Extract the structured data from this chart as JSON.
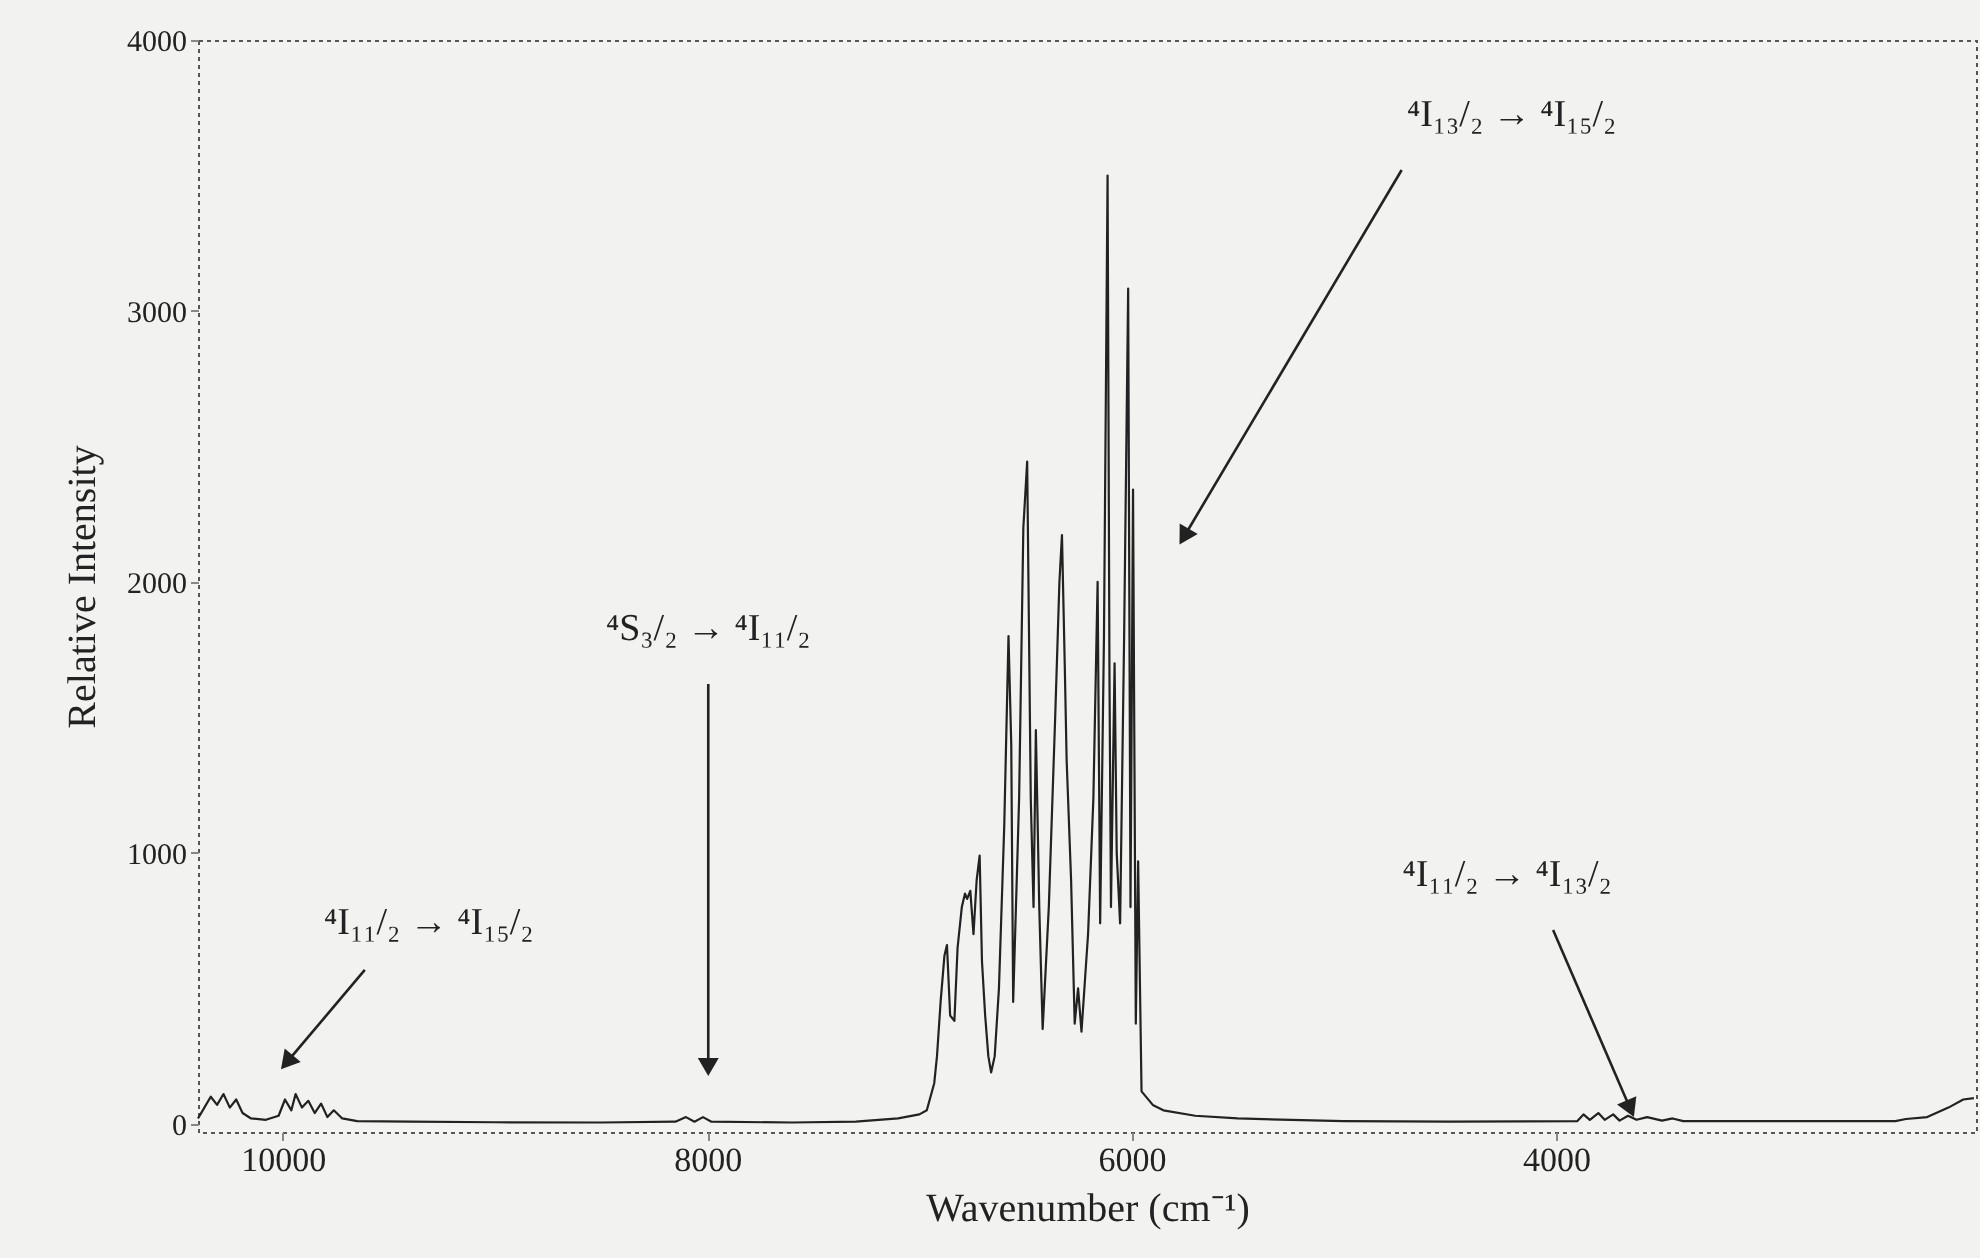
{
  "chart_data": {
    "type": "line",
    "xlabel": "Wavenumber (cm⁻¹)",
    "ylabel": "Relative Intensity",
    "xlim": [
      10400,
      2020
    ],
    "ylim": [
      -30,
      4000
    ],
    "xticks": [
      10000,
      8000,
      6000,
      4000
    ],
    "yticks": [
      0,
      1000,
      2000,
      3000,
      4000
    ],
    "grid": false,
    "x": [
      10400,
      10370,
      10340,
      10310,
      10280,
      10250,
      10220,
      10190,
      10150,
      10080,
      10020,
      9990,
      9960,
      9940,
      9910,
      9880,
      9850,
      9820,
      9790,
      9760,
      9720,
      9650,
      9400,
      9000,
      8500,
      8150,
      8100,
      8060,
      8020,
      7980,
      7600,
      7300,
      7100,
      7000,
      6965,
      6930,
      6917,
      6900,
      6882,
      6870,
      6855,
      6835,
      6820,
      6800,
      6785,
      6775,
      6760,
      6745,
      6730,
      6716,
      6705,
      6690,
      6675,
      6662,
      6645,
      6625,
      6600,
      6580,
      6567,
      6558,
      6530,
      6510,
      6492,
      6475,
      6462,
      6451,
      6435,
      6419,
      6390,
      6360,
      6340,
      6328,
      6315,
      6306,
      6285,
      6268,
      6252,
      6236,
      6205,
      6180,
      6160,
      6148,
      6130,
      6113,
      6104,
      6097,
      6080,
      6070,
      6054,
      6035,
      6016,
      6005,
      5993,
      5980,
      5969,
      5953,
      5900,
      5850,
      5700,
      5500,
      5000,
      4500,
      3900,
      3870,
      3840,
      3800,
      3770,
      3730,
      3700,
      3660,
      3620,
      3570,
      3500,
      3450,
      3400,
      3000,
      2400,
      2350,
      2250,
      2150,
      2080,
      2030
    ],
    "series": [
      {
        "color": "#222222",
        "values": [
          20,
          60,
          100,
          70,
          110,
          60,
          90,
          40,
          20,
          15,
          30,
          90,
          50,
          110,
          60,
          85,
          40,
          75,
          25,
          50,
          20,
          10,
          8,
          6,
          5,
          8,
          25,
          8,
          25,
          8,
          5,
          8,
          20,
          35,
          50,
          150,
          250,
          450,
          620,
          660,
          400,
          380,
          650,
          800,
          850,
          830,
          860,
          700,
          900,
          990,
          600,
          400,
          250,
          190,
          250,
          500,
          1100,
          1800,
          1400,
          450,
          1200,
          2200,
          2444,
          1200,
          800,
          1453,
          800,
          350,
          800,
          1500,
          2000,
          2173,
          1700,
          1343,
          900,
          370,
          500,
          340,
          700,
          1200,
          2000,
          740,
          1800,
          3500,
          1644,
          800,
          1700,
          1000,
          740,
          1800,
          3083,
          800,
          2341,
          370,
          969,
          120,
          70,
          50,
          30,
          20,
          10,
          8,
          10,
          35,
          15,
          40,
          15,
          35,
          12,
          30,
          15,
          25,
          12,
          20,
          10,
          10,
          10,
          18,
          25,
          60,
          90,
          95
        ]
      }
    ],
    "annotations": [
      {
        "text": "⁴I₁₁/₂ → ⁴I₁₅/₂",
        "x": 9972,
        "y": 236
      },
      {
        "text": "⁴S₃/₂ → ⁴I₁₁/₂",
        "x": 7995,
        "y": 221
      },
      {
        "text": "⁴I₁₃/₂ → ⁴I₁₅/₂",
        "x": 5745,
        "y": 2177
      },
      {
        "text": "⁴I₁₁/₂ → ⁴I₁₃/₂",
        "x": 3655,
        "y": 66
      }
    ]
  }
}
